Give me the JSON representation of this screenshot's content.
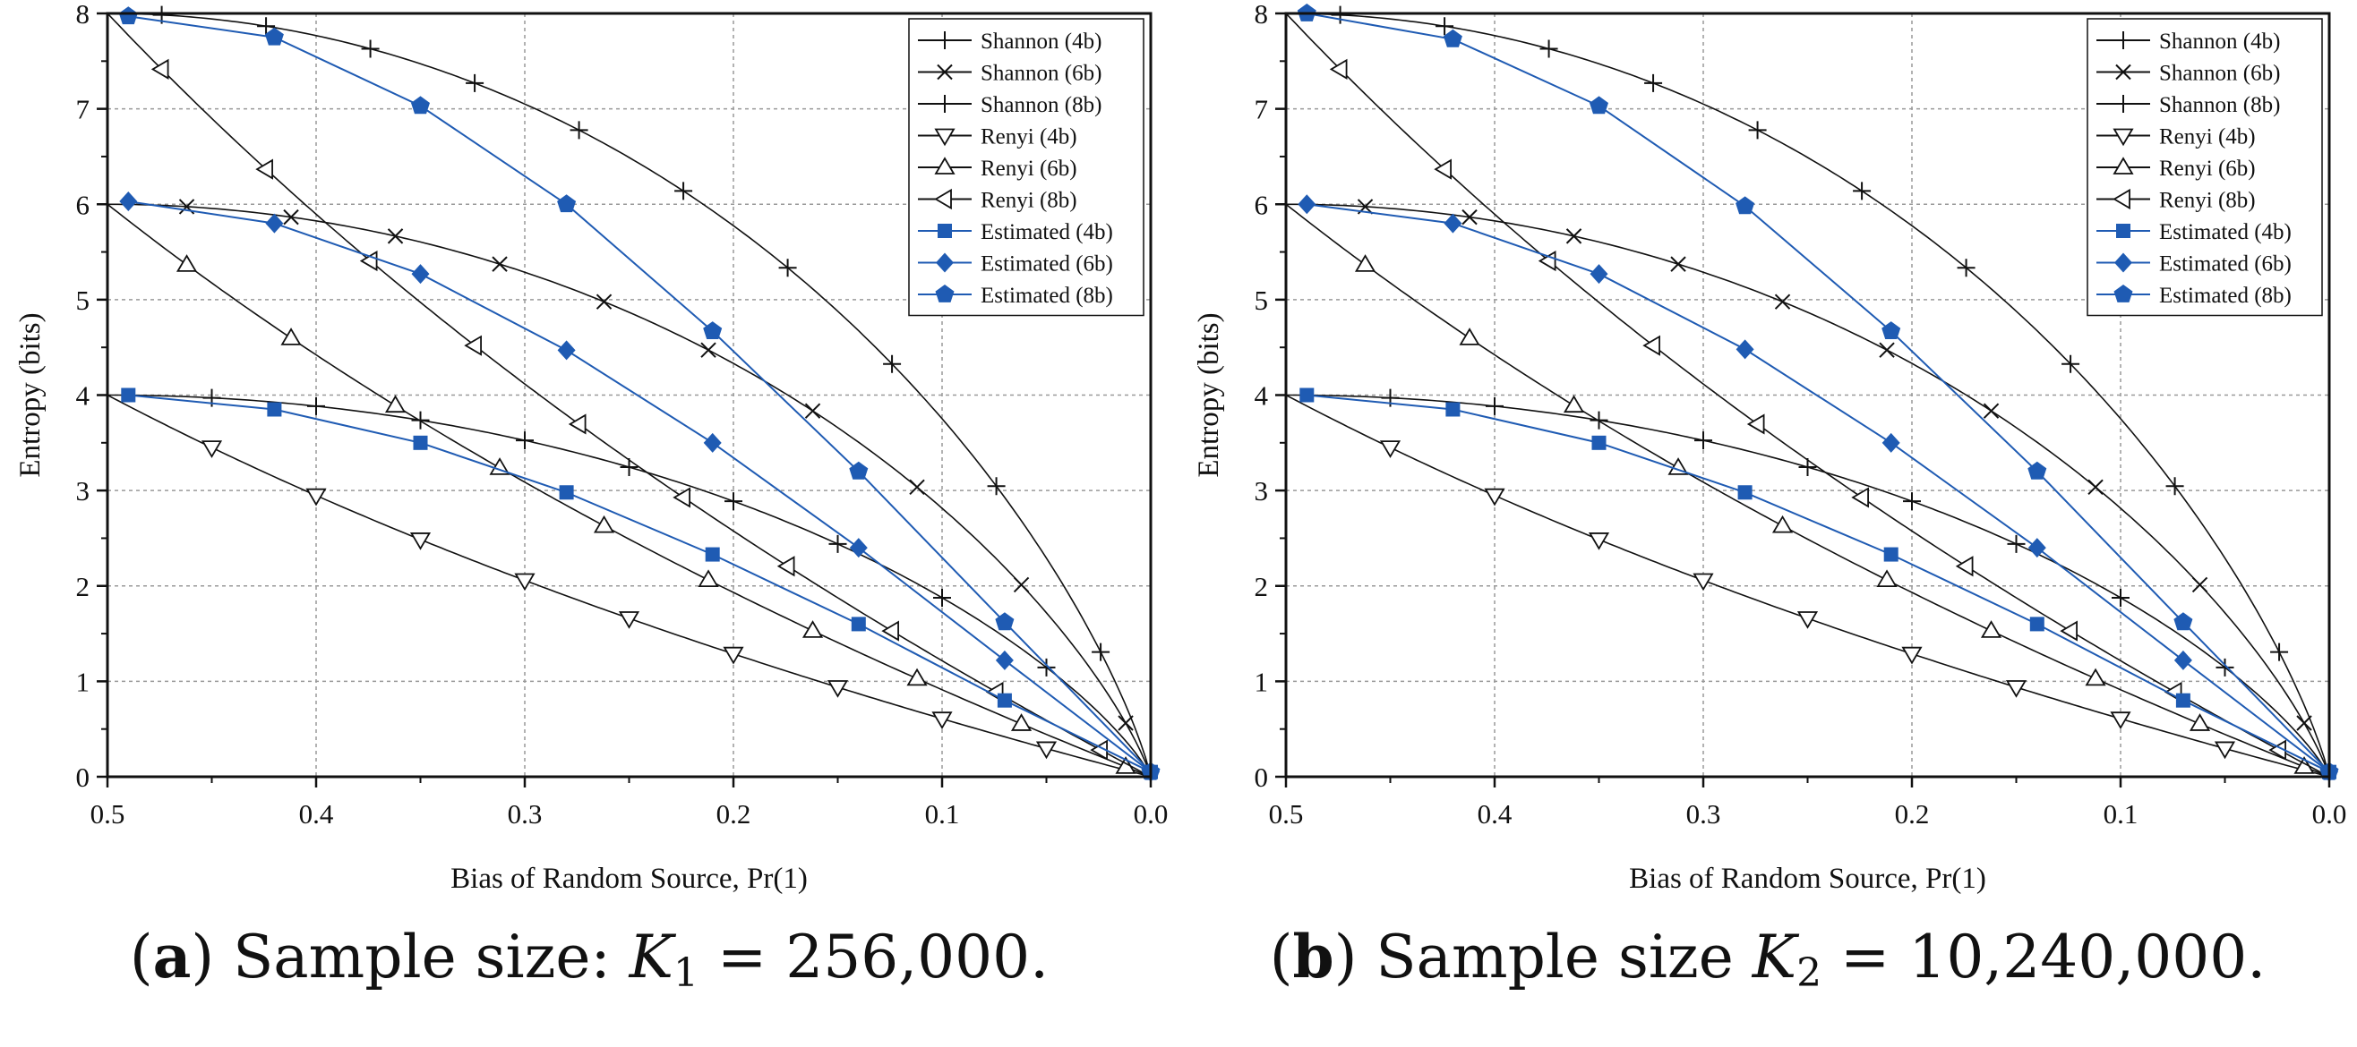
{
  "chart_data": [
    {
      "type": "line",
      "panel": "a",
      "xlabel": "Bias of Random Source, Pr(1)",
      "ylabel": "Entropy (bits)",
      "xlim": [
        0.5,
        0.0
      ],
      "ylim": [
        0,
        8
      ],
      "x_ticks": [
        "0.5",
        "0.4",
        "0.3",
        "0.2",
        "0.1",
        "0.0"
      ],
      "y_ticks": [
        "0",
        "1",
        "2",
        "3",
        "4",
        "5",
        "6",
        "7",
        "8"
      ],
      "grid": true,
      "legend_position": "top-right",
      "legend": [
        "Shannon (4b)",
        "Shannon (6b)",
        "Shannon (8b)",
        "Renyi (4b)",
        "Renyi (6b)",
        "Renyi (8b)",
        "Estimated (4b)",
        "Estimated (6b)",
        "Estimated (8b)"
      ],
      "series": [
        {
          "name": "Shannon (4b)",
          "formula": "n*H(p)",
          "n": 4,
          "marker": "plus",
          "color": "#111111"
        },
        {
          "name": "Shannon (6b)",
          "formula": "n*H(p)",
          "n": 6,
          "marker": "x",
          "color": "#111111"
        },
        {
          "name": "Shannon (8b)",
          "formula": "n*H(p)",
          "n": 8,
          "marker": "plus",
          "color": "#111111"
        },
        {
          "name": "Renyi (4b)",
          "formula": "-n*log2(1-p)",
          "n": 4,
          "marker": "triangle-down",
          "color": "#111111"
        },
        {
          "name": "Renyi (6b)",
          "formula": "-n*log2(1-p)",
          "n": 6,
          "marker": "triangle-up",
          "color": "#111111"
        },
        {
          "name": "Renyi (8b)",
          "formula": "-n*log2(1-p)",
          "n": 8,
          "marker": "triangle-left",
          "color": "#111111"
        },
        {
          "name": "Estimated (4b)",
          "marker": "square",
          "color": "#1f5bb3",
          "points": [
            [
              0.49,
              4.0
            ],
            [
              0.42,
              3.85
            ],
            [
              0.35,
              3.5
            ],
            [
              0.28,
              2.98
            ],
            [
              0.21,
              2.33
            ],
            [
              0.14,
              1.6
            ],
            [
              0.07,
              0.8
            ],
            [
              0.0,
              0.05
            ]
          ]
        },
        {
          "name": "Estimated (6b)",
          "marker": "diamond",
          "color": "#1f5bb3",
          "points": [
            [
              0.49,
              6.03
            ],
            [
              0.42,
              5.8
            ],
            [
              0.35,
              5.27
            ],
            [
              0.28,
              4.47
            ],
            [
              0.21,
              3.5
            ],
            [
              0.14,
              2.4
            ],
            [
              0.07,
              1.22
            ],
            [
              0.0,
              0.05
            ]
          ]
        },
        {
          "name": "Estimated (8b)",
          "marker": "pentagon",
          "color": "#1f5bb3",
          "points": [
            [
              0.49,
              7.97
            ],
            [
              0.42,
              7.75
            ],
            [
              0.35,
              7.03
            ],
            [
              0.28,
              6.0
            ],
            [
              0.21,
              4.67
            ],
            [
              0.14,
              3.2
            ],
            [
              0.07,
              1.62
            ],
            [
              0.0,
              0.05
            ]
          ]
        }
      ],
      "caption": {
        "label": "a",
        "pre": ") Sample size: ",
        "var": "K",
        "sub": "1",
        "post": " = 256,000."
      }
    },
    {
      "type": "line",
      "panel": "b",
      "xlabel": "Bias of Random Source, Pr(1)",
      "ylabel": "Entropy (bits)",
      "xlim": [
        0.5,
        0.0
      ],
      "ylim": [
        0,
        8
      ],
      "x_ticks": [
        "0.5",
        "0.4",
        "0.3",
        "0.2",
        "0.1",
        "0.0"
      ],
      "y_ticks": [
        "0",
        "1",
        "2",
        "3",
        "4",
        "5",
        "6",
        "7",
        "8"
      ],
      "grid": true,
      "legend_position": "top-right",
      "legend": [
        "Shannon (4b)",
        "Shannon (6b)",
        "Shannon (8b)",
        "Renyi (4b)",
        "Renyi (6b)",
        "Renyi (8b)",
        "Estimated (4b)",
        "Estimated (6b)",
        "Estimated (8b)"
      ],
      "series": [
        {
          "name": "Shannon (4b)",
          "formula": "n*H(p)",
          "n": 4,
          "marker": "plus",
          "color": "#111111"
        },
        {
          "name": "Shannon (6b)",
          "formula": "n*H(p)",
          "n": 6,
          "marker": "x",
          "color": "#111111"
        },
        {
          "name": "Shannon (8b)",
          "formula": "n*H(p)",
          "n": 8,
          "marker": "plus",
          "color": "#111111"
        },
        {
          "name": "Renyi (4b)",
          "formula": "-n*log2(1-p)",
          "n": 4,
          "marker": "triangle-down",
          "color": "#111111"
        },
        {
          "name": "Renyi (6b)",
          "formula": "-n*log2(1-p)",
          "n": 6,
          "marker": "triangle-up",
          "color": "#111111"
        },
        {
          "name": "Renyi (8b)",
          "formula": "-n*log2(1-p)",
          "n": 8,
          "marker": "triangle-left",
          "color": "#111111"
        },
        {
          "name": "Estimated (4b)",
          "marker": "square",
          "color": "#1f5bb3",
          "points": [
            [
              0.49,
              4.0
            ],
            [
              0.42,
              3.85
            ],
            [
              0.35,
              3.5
            ],
            [
              0.28,
              2.98
            ],
            [
              0.21,
              2.33
            ],
            [
              0.14,
              1.6
            ],
            [
              0.07,
              0.8
            ],
            [
              0.0,
              0.05
            ]
          ]
        },
        {
          "name": "Estimated (6b)",
          "marker": "diamond",
          "color": "#1f5bb3",
          "points": [
            [
              0.49,
              6.0
            ],
            [
              0.42,
              5.8
            ],
            [
              0.35,
              5.27
            ],
            [
              0.28,
              4.48
            ],
            [
              0.21,
              3.5
            ],
            [
              0.14,
              2.4
            ],
            [
              0.07,
              1.22
            ],
            [
              0.0,
              0.05
            ]
          ]
        },
        {
          "name": "Estimated (8b)",
          "marker": "pentagon",
          "color": "#1f5bb3",
          "points": [
            [
              0.49,
              8.0
            ],
            [
              0.42,
              7.73
            ],
            [
              0.35,
              7.03
            ],
            [
              0.28,
              5.98
            ],
            [
              0.21,
              4.67
            ],
            [
              0.14,
              3.2
            ],
            [
              0.07,
              1.62
            ],
            [
              0.0,
              0.05
            ]
          ]
        }
      ],
      "caption": {
        "label": "b",
        "pre": ") Sample size ",
        "var": "K",
        "sub": "2",
        "post": " = 10,240,000."
      }
    }
  ]
}
